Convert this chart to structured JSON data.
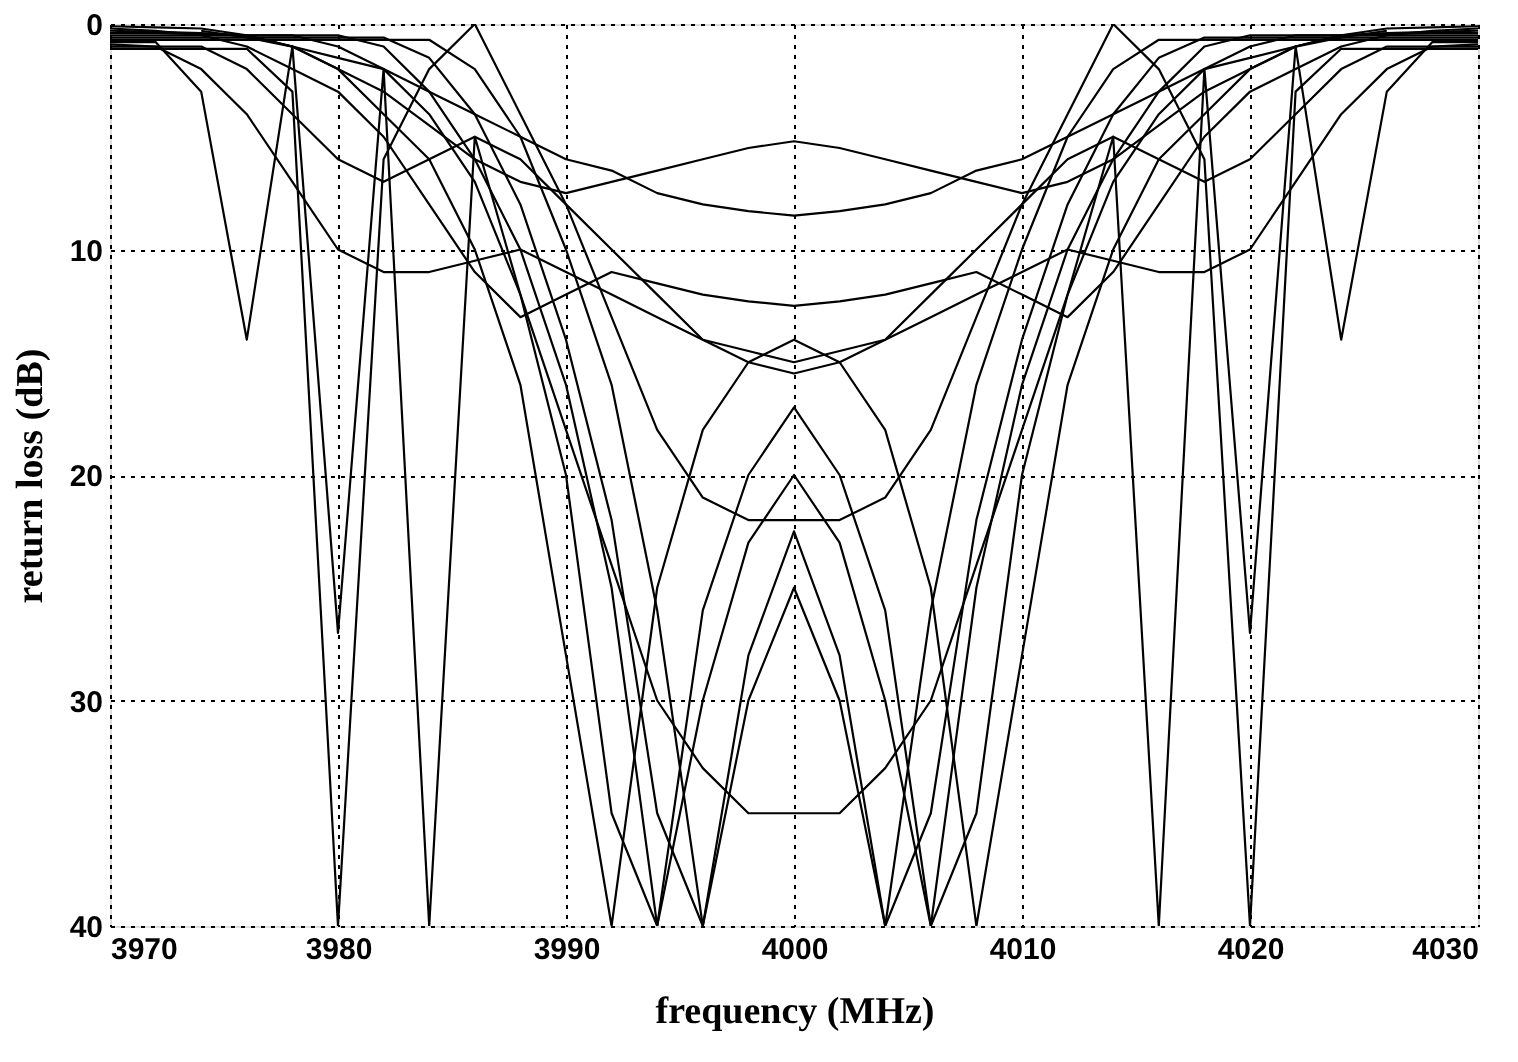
{
  "chart_data": {
    "type": "line",
    "xlabel": "frequency (MHz)",
    "ylabel": "return loss (dB)",
    "x": [
      3970,
      3972,
      3974,
      3976,
      3978,
      3980,
      3982,
      3984,
      3986,
      3988,
      3990,
      3992,
      3994,
      3996,
      3998,
      4000,
      4002,
      4004,
      4006,
      4008,
      4010,
      4012,
      4014,
      4016,
      4018,
      4020,
      4022,
      4024,
      4026,
      4028,
      4030
    ],
    "xlim": [
      3970,
      4030
    ],
    "xticks": [
      3970,
      3980,
      3990,
      4000,
      4010,
      4020,
      4030
    ],
    "ylim": [
      40,
      0
    ],
    "yticks": [
      0,
      10,
      20,
      30,
      40
    ],
    "grid": true,
    "line_style": "solid",
    "series": [
      {
        "color": "#000000",
        "values": [
          0.1,
          0.15,
          0.2,
          0.5,
          1,
          2,
          3,
          4.5,
          6,
          7,
          7.5,
          7,
          6.5,
          6,
          5.5,
          5.2,
          5.5,
          6,
          6.5,
          7,
          7.5,
          7,
          6,
          4.5,
          3,
          2,
          1,
          0.5,
          0.2,
          0.15,
          0.1
        ]
      },
      {
        "color": "#000000",
        "x": [
          3974,
          3976,
          3978,
          3980,
          3982,
          3984,
          3986,
          3988,
          3990,
          3992,
          3994,
          3996,
          3998,
          4000,
          4002,
          4004,
          4006,
          4008,
          4010,
          4012,
          4014,
          4016,
          4018,
          4020,
          4022,
          4024,
          4026
        ],
        "values": [
          0.3,
          0.6,
          1,
          1.5,
          2,
          3,
          4,
          5,
          6,
          6.5,
          7.5,
          8,
          8.3,
          8.5,
          8.3,
          8,
          7.5,
          6.5,
          6,
          5,
          4,
          3,
          2,
          1.5,
          1,
          0.6,
          0.3
        ]
      },
      {
        "color": "#000000",
        "values": [
          0.2,
          0.3,
          0.5,
          1,
          2,
          3,
          5,
          8,
          11,
          13,
          12,
          11,
          11.5,
          12,
          12.3,
          12.5,
          12.3,
          12,
          11.5,
          11,
          12,
          13,
          11,
          8,
          5,
          3,
          2,
          1,
          0.5,
          0.3,
          0.2
        ]
      },
      {
        "color": "#000000",
        "values": [
          0.3,
          0.35,
          0.4,
          0.5,
          1,
          2,
          4,
          6,
          10,
          16,
          28,
          40,
          25,
          18,
          15,
          14,
          15,
          18,
          25,
          40,
          28,
          16,
          10,
          6,
          4,
          2,
          1,
          0.5,
          0.4,
          0.35,
          0.3
        ]
      },
      {
        "color": "#000000",
        "values": [
          0.4,
          0.4,
          0.45,
          0.5,
          0.5,
          1,
          2,
          4,
          7,
          12,
          20,
          35,
          40,
          26,
          20,
          17,
          20,
          26,
          40,
          35,
          20,
          12,
          7,
          4,
          2,
          1,
          0.5,
          0.5,
          0.45,
          0.4,
          0.4
        ]
      },
      {
        "color": "#000000",
        "values": [
          0.5,
          0.5,
          0.5,
          0.5,
          0.5,
          0.5,
          1,
          3,
          6,
          10,
          16,
          25,
          40,
          30,
          23,
          20,
          23,
          30,
          40,
          25,
          16,
          10,
          6,
          3,
          1,
          0.5,
          0.5,
          0.5,
          0.5,
          0.5,
          0.5
        ]
      },
      {
        "color": "#000000",
        "values": [
          0.6,
          0.6,
          0.6,
          0.6,
          0.6,
          0.6,
          0.6,
          1.5,
          4,
          8,
          14,
          22,
          35,
          40,
          28,
          22.5,
          28,
          40,
          35,
          22,
          14,
          8,
          4,
          1.5,
          0.6,
          0.6,
          0.6,
          0.6,
          0.6,
          0.6,
          0.6
        ]
      },
      {
        "color": "#000000",
        "values": [
          0.7,
          0.7,
          0.7,
          0.7,
          0.7,
          0.7,
          0.7,
          0.7,
          2,
          5,
          10,
          16,
          26,
          40,
          30,
          25,
          30,
          40,
          26,
          16,
          10,
          5,
          2,
          0.7,
          0.7,
          0.7,
          0.7,
          0.7,
          0.7,
          0.7,
          0.7
        ]
      },
      {
        "color": "#000000",
        "values": [
          0.8,
          0.8,
          3,
          14,
          1,
          27,
          2,
          40,
          5,
          12,
          18,
          24,
          30,
          33,
          35,
          35,
          35,
          33,
          30,
          24,
          18,
          12,
          5,
          40,
          2,
          27,
          1,
          14,
          3,
          0.8,
          0.8
        ]
      },
      {
        "color": "#000000",
        "values": [
          0.9,
          1,
          2,
          4,
          7,
          10,
          11,
          11,
          10.5,
          10,
          11,
          12,
          13,
          14,
          14.5,
          15,
          14.5,
          14,
          13,
          12,
          11,
          10,
          10.5,
          11,
          11,
          10,
          7,
          4,
          2,
          1,
          0.9
        ]
      },
      {
        "color": "#000000",
        "values": [
          1,
          1,
          1,
          2,
          4,
          6,
          7,
          6,
          5,
          6,
          8,
          10,
          12,
          14,
          15,
          15.5,
          15,
          14,
          12,
          10,
          8,
          6,
          5,
          6,
          7,
          6,
          4,
          2,
          1,
          1,
          1
        ]
      },
      {
        "color": "#000000",
        "values": [
          1.1,
          1.1,
          1.1,
          1.1,
          3,
          40,
          6,
          2,
          0,
          4,
          8,
          13,
          18,
          21,
          22,
          22,
          22,
          21,
          18,
          13,
          8,
          4,
          0,
          2,
          6,
          40,
          3,
          1.1,
          1.1,
          1.1,
          1.1
        ]
      }
    ]
  }
}
